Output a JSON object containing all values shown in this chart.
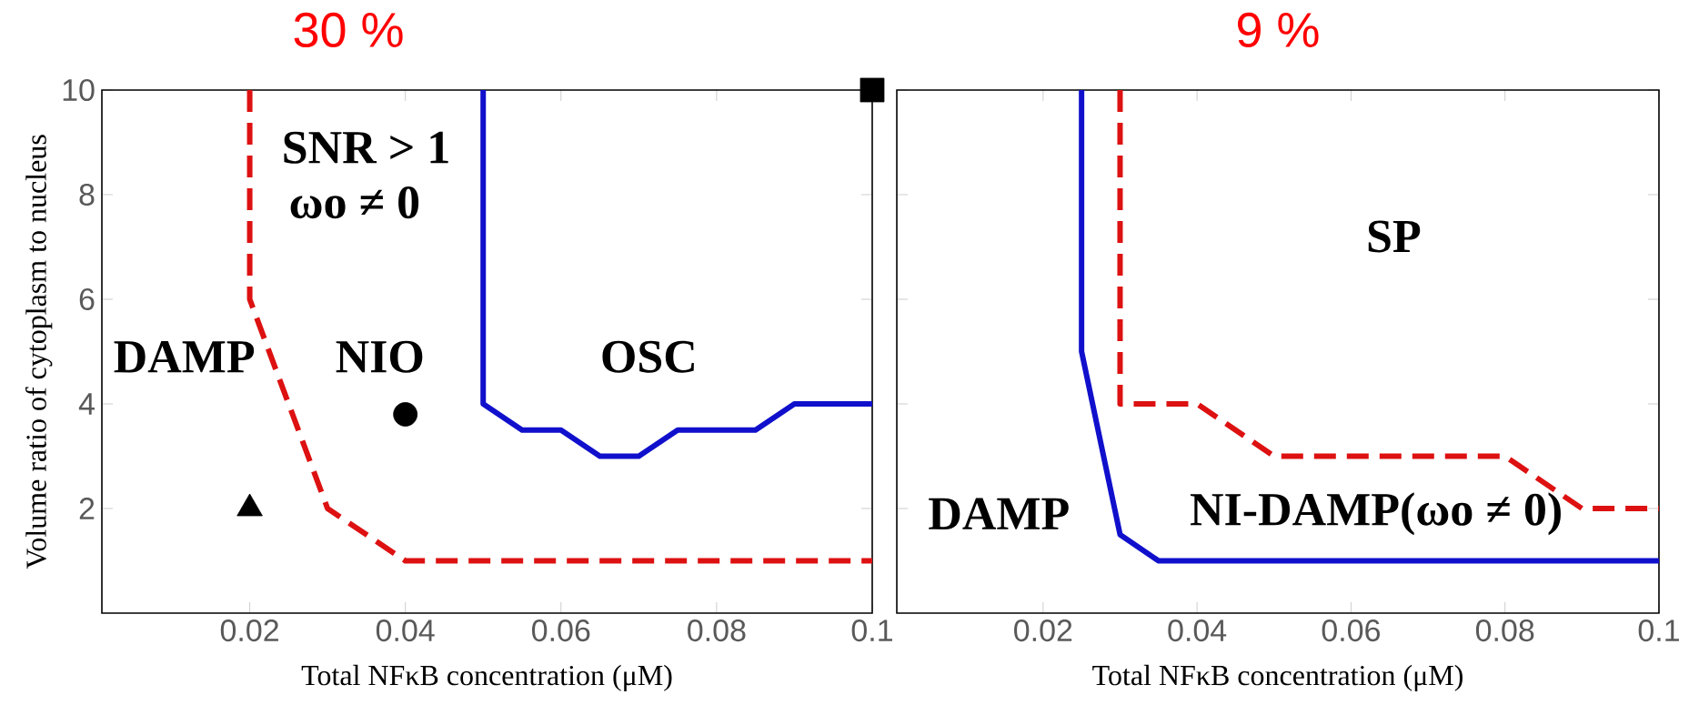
{
  "chart_data": [
    {
      "type": "line",
      "title": "30 %",
      "xlabel": "Total NFκB concentration (μM)",
      "ylabel": "Volume ratio of cytoplasm to nucleus",
      "xlim": [
        0.001,
        0.1
      ],
      "ylim": [
        0,
        10
      ],
      "xticks": [
        0.02,
        0.04,
        0.06,
        0.08,
        0.1
      ],
      "yticks": [
        2,
        4,
        6,
        8,
        10
      ],
      "series": [
        {
          "color": "#dd1111",
          "line_style": "dashed",
          "x": [
            0.02,
            0.02,
            0.03,
            0.04,
            0.1
          ],
          "values": [
            10,
            6,
            2,
            1,
            1
          ]
        },
        {
          "color": "#1010cc",
          "line_style": "solid",
          "x": [
            0.05,
            0.05,
            0.055,
            0.06,
            0.065,
            0.07,
            0.075,
            0.085,
            0.09,
            0.1
          ],
          "values": [
            10,
            4,
            3.5,
            3.5,
            3,
            3,
            3.5,
            3.5,
            4,
            4
          ]
        },
        {
          "type": "scatter",
          "color": "#000000",
          "marker": "triangle",
          "x": [
            0.02
          ],
          "values": [
            2
          ]
        },
        {
          "type": "scatter",
          "color": "#000000",
          "marker": "circle",
          "x": [
            0.04
          ],
          "values": [
            3.8
          ]
        },
        {
          "type": "scatter",
          "color": "#000000",
          "marker": "square",
          "x": [
            0.1
          ],
          "values": [
            10
          ]
        }
      ],
      "annotations": [
        "SNR > 1",
        "ωo ≠ 0",
        "DAMP",
        "NIO",
        "OSC"
      ]
    },
    {
      "type": "line",
      "title": "9 %",
      "xlabel": "Total NFκB concentration (μM)",
      "xlim": [
        0.001,
        0.1
      ],
      "ylim": [
        0,
        10
      ],
      "xticks": [
        0.02,
        0.04,
        0.06,
        0.08,
        0.1
      ],
      "yticks": [
        2,
        4,
        6,
        8,
        10
      ],
      "tick_labels": "x",
      "series": [
        {
          "color": "#1010cc",
          "line_style": "solid",
          "x": [
            0.025,
            0.025,
            0.03,
            0.035,
            0.1
          ],
          "values": [
            10,
            5,
            1.5,
            1,
            1
          ]
        },
        {
          "color": "#dd1111",
          "line_style": "dashed",
          "x": [
            0.03,
            0.03,
            0.04,
            0.05,
            0.08,
            0.09,
            0.1
          ],
          "values": [
            10,
            4,
            4,
            3,
            3,
            2,
            2
          ]
        }
      ],
      "annotations": [
        "SP",
        "DAMP",
        "NI-DAMP(ωo ≠ 0)"
      ]
    }
  ]
}
